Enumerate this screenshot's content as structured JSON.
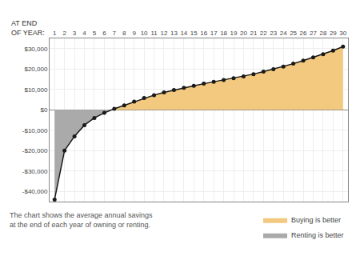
{
  "chart_data": {
    "type": "area",
    "x": [
      1,
      2,
      3,
      4,
      5,
      6,
      7,
      8,
      9,
      10,
      11,
      12,
      13,
      14,
      15,
      16,
      17,
      18,
      19,
      20,
      21,
      22,
      23,
      24,
      25,
      26,
      27,
      28,
      29,
      30
    ],
    "values": [
      -44000,
      -20000,
      -13000,
      -7500,
      -4000,
      -1500,
      500,
      2200,
      4000,
      5800,
      7200,
      8500,
      9700,
      10800,
      11800,
      12800,
      13700,
      14600,
      15500,
      16400,
      17500,
      18700,
      19900,
      21200,
      22600,
      24100,
      25700,
      27300,
      29000,
      31000
    ],
    "color": "#1a1a1a",
    "marker": "circle",
    "series": [
      {
        "name": "Buying is better",
        "color": "#f2c97e"
      },
      {
        "name": "Renting is better",
        "color": "#aaaaaa"
      }
    ],
    "xlim": [
      0.5,
      30.5
    ],
    "xticks": [
      1,
      2,
      3,
      4,
      5,
      6,
      7,
      8,
      9,
      10,
      11,
      12,
      13,
      14,
      15,
      16,
      17,
      18,
      19,
      20,
      21,
      22,
      23,
      24,
      25,
      26,
      27,
      28,
      29,
      30
    ],
    "ylim": [
      -45000,
      35000
    ],
    "yticks": [
      {
        "value": -40000,
        "label": "-$40,000"
      },
      {
        "value": -30000,
        "label": "-$30,000"
      },
      {
        "value": -20000,
        "label": "-$20,000"
      },
      {
        "value": -10000,
        "label": "-$10,000"
      },
      {
        "value": 0,
        "label": "$0"
      },
      {
        "value": 10000,
        "label": "$10,000"
      },
      {
        "value": 20000,
        "label": "$20,000"
      },
      {
        "value": 30000,
        "label": "$30,000"
      }
    ],
    "grid": true,
    "legend": "bottom right",
    "annotations": [
      "AT END",
      "OF YEAR:",
      "The chart shows the average annual savings",
      "at the end of each year of owning or renting."
    ]
  }
}
